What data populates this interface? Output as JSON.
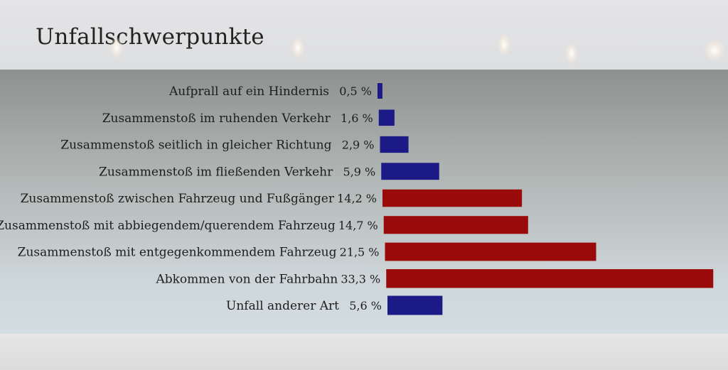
{
  "title": "Unfallschwerpunkte",
  "colors": {
    "blue": "#1c1a86",
    "red": "#9a0a0a"
  },
  "chart_data": {
    "type": "bar",
    "orientation": "horizontal",
    "categories": [
      "Aufprall auf ein Hindernis",
      "Zusammenstoß im ruhenden Verkehr",
      "Zusammenstoß seitlich in gleicher Richtung",
      "Zusammenstoß im fließenden Verkehr",
      "Zusammenstoß zwischen Fahrzeug und Fußgänger",
      "Zusammenstoß mit abbiegendem/querendem Fahrzeug",
      "Zusammenstoß mit entgegenkommendem Fahrzeug",
      "Abkommen von der Fahrbahn",
      "Unfall anderer Art"
    ],
    "values": [
      0.5,
      1.6,
      2.9,
      5.9,
      14.2,
      14.7,
      21.5,
      33.3,
      5.6
    ],
    "value_labels": [
      "0,5 %",
      "1,6 %",
      "2,9 %",
      "5,9 %",
      "14,2 %",
      "14,7 %",
      "21,5 %",
      "33,3 %",
      "5,6 %"
    ],
    "bar_colors": [
      "blue",
      "blue",
      "blue",
      "blue",
      "red",
      "red",
      "red",
      "red",
      "blue"
    ],
    "xlim": [
      0,
      33.3
    ]
  }
}
